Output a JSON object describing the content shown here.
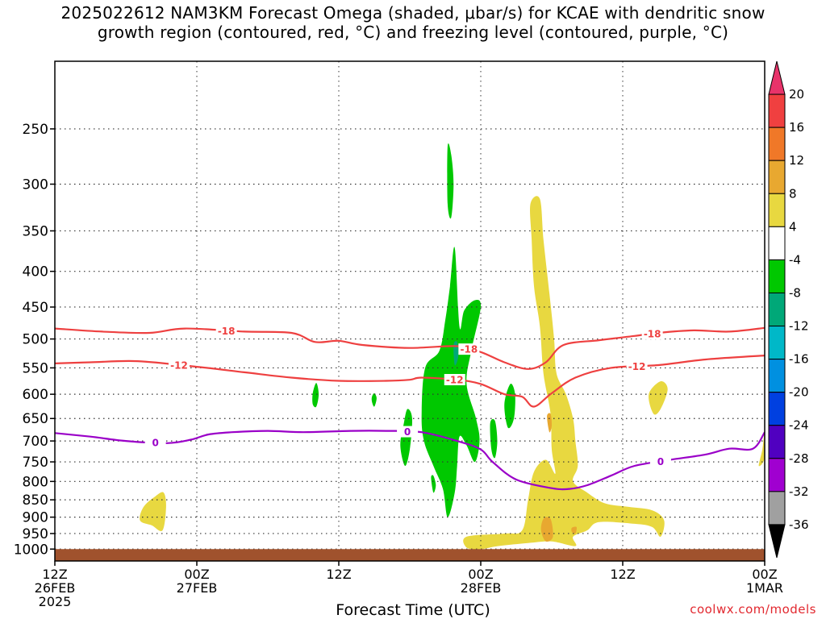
{
  "title": {
    "line1": "2025022612 NAM3KM Forecast Omega (shaded, μbar/s) for KCAE with dendritic snow",
    "line2": "growth region (contoured, red, °C) and freezing level (contoured, purple, °C)"
  },
  "credit": "coolwx.com/models",
  "chart_data": {
    "type": "heatmap",
    "title": "2025022612 NAM3KM Forecast Omega (shaded, μbar/s) for KCAE with dendritic snow growth region (contoured, red, °C) and freezing level (contoured, purple, °C)",
    "xlabel": "Forecast Time (UTC)",
    "ylabel": "",
    "x_ticks": [
      {
        "hour": 0,
        "lines": [
          "12Z",
          "26FEB",
          "2025"
        ]
      },
      {
        "hour": 12,
        "lines": [
          "00Z",
          "27FEB"
        ]
      },
      {
        "hour": 24,
        "lines": [
          "12Z"
        ]
      },
      {
        "hour": 36,
        "lines": [
          "00Z",
          "28FEB"
        ]
      },
      {
        "hour": 48,
        "lines": [
          "12Z"
        ]
      },
      {
        "hour": 60,
        "lines": [
          "00Z",
          "1MAR"
        ]
      }
    ],
    "xlim_hours": [
      0,
      60
    ],
    "y_scale": "log",
    "y_ticks_hpa": [
      250,
      300,
      350,
      400,
      450,
      500,
      550,
      600,
      650,
      700,
      750,
      800,
      850,
      900,
      950,
      1000
    ],
    "ylim_hpa": [
      200,
      1040
    ],
    "grid": "dotted",
    "colorbar": {
      "label_values": [
        "20",
        "16",
        "12",
        "8",
        "4",
        "-4",
        "-8",
        "-12",
        "-16",
        "-20",
        "-24",
        "-28",
        "-32",
        "-36"
      ],
      "bins": [
        {
          "color": "#e8336a"
        },
        {
          "color": "#f04040"
        },
        {
          "color": "#f07828"
        },
        {
          "color": "#e8a830"
        },
        {
          "color": "#e8d840"
        },
        {
          "color": "#ffffff"
        },
        {
          "color": "#00c800"
        },
        {
          "color": "#00a878"
        },
        {
          "color": "#00b8c8"
        },
        {
          "color": "#0090e0"
        },
        {
          "color": "#0040e0"
        },
        {
          "color": "#5000c0"
        },
        {
          "color": "#a000d0"
        },
        {
          "color": "#a0a0a0"
        },
        {
          "color": "#000000"
        }
      ]
    },
    "omega_regions": [
      {
        "name": "green",
        "color": "#00c800",
        "blobs": [
          [
            [
              21.8,
              598
            ],
            [
              22.1,
              578
            ],
            [
              22.3,
              600
            ],
            [
              22.1,
              625
            ],
            [
              21.8,
              620
            ]
          ],
          [
            [
              26.8,
              605
            ],
            [
              27.0,
              598
            ],
            [
              27.2,
              608
            ],
            [
              27.0,
              625
            ],
            [
              26.8,
              615
            ]
          ],
          [
            [
              29.5,
              660
            ],
            [
              29.8,
              630
            ],
            [
              30.2,
              650
            ],
            [
              30.0,
              720
            ],
            [
              29.6,
              760
            ],
            [
              29.2,
              710
            ]
          ],
          [
            [
              31.3,
              550
            ],
            [
              32.5,
              520
            ],
            [
              33.0,
              470
            ],
            [
              33.4,
              420
            ],
            [
              33.8,
              370
            ],
            [
              34.2,
              480
            ],
            [
              34.6,
              455
            ],
            [
              35.5,
              440
            ],
            [
              36.0,
              450
            ],
            [
              35.2,
              520
            ],
            [
              34.8,
              580
            ],
            [
              35.6,
              650
            ],
            [
              35.9,
              700
            ],
            [
              35.5,
              750
            ],
            [
              34.8,
              710
            ],
            [
              34.2,
              690
            ],
            [
              34.0,
              760
            ],
            [
              33.8,
              830
            ],
            [
              33.2,
              900
            ],
            [
              32.8,
              820
            ],
            [
              32.0,
              760
            ],
            [
              31.2,
              700
            ],
            [
              31.0,
              640
            ]
          ],
          [
            [
              33.2,
              265
            ],
            [
              33.5,
              272
            ],
            [
              33.7,
              300
            ],
            [
              33.5,
              335
            ],
            [
              33.2,
              320
            ]
          ],
          [
            [
              38.0,
              620
            ],
            [
              38.5,
              580
            ],
            [
              38.9,
              600
            ],
            [
              38.8,
              650
            ],
            [
              38.3,
              670
            ]
          ],
          [
            [
              36.8,
              660
            ],
            [
              37.2,
              655
            ],
            [
              37.4,
              700
            ],
            [
              37.2,
              740
            ],
            [
              36.9,
              720
            ]
          ],
          [
            [
              31.8,
              790
            ],
            [
              32.0,
              785
            ],
            [
              32.2,
              810
            ],
            [
              32.0,
              830
            ]
          ]
        ]
      },
      {
        "name": "teal",
        "color": "#00a878",
        "blobs": [
          [
            [
              33.7,
              510
            ],
            [
              34.0,
              505
            ],
            [
              34.1,
              530
            ],
            [
              33.8,
              545
            ]
          ]
        ]
      },
      {
        "name": "yellow",
        "color": "#e8d840",
        "blobs": [
          [
            [
              7.2,
              910
            ],
            [
              7.5,
              870
            ],
            [
              8.5,
              840
            ],
            [
              9.2,
              830
            ],
            [
              9.4,
              870
            ],
            [
              9.1,
              940
            ],
            [
              8.2,
              925
            ]
          ],
          [
            [
              40.2,
              320
            ],
            [
              41.0,
              315
            ],
            [
              41.3,
              360
            ],
            [
              41.8,
              430
            ],
            [
              42.2,
              500
            ],
            [
              42.4,
              560
            ],
            [
              43.2,
              600
            ],
            [
              43.8,
              650
            ],
            [
              44.0,
              700
            ],
            [
              44.2,
              760
            ],
            [
              43.8,
              800
            ],
            [
              45.0,
              830
            ],
            [
              46.5,
              860
            ],
            [
              48.5,
              870
            ],
            [
              50.5,
              880
            ],
            [
              51.5,
              910
            ],
            [
              51.2,
              960
            ],
            [
              50.5,
              930
            ],
            [
              49.0,
              920
            ],
            [
              46.0,
              915
            ],
            [
              45.0,
              940
            ],
            [
              43.8,
              960
            ],
            [
              44.0,
              990
            ],
            [
              42.0,
              975
            ],
            [
              40.0,
              980
            ],
            [
              37.5,
              990
            ],
            [
              36.0,
              1000
            ],
            [
              34.8,
              995
            ],
            [
              34.8,
              960
            ],
            [
              38.0,
              950
            ],
            [
              39.5,
              940
            ],
            [
              40.0,
              850
            ],
            [
              40.5,
              775
            ],
            [
              41.5,
              745
            ],
            [
              42.3,
              780
            ],
            [
              42.0,
              720
            ],
            [
              41.9,
              640
            ],
            [
              41.3,
              560
            ],
            [
              41.0,
              480
            ],
            [
              40.5,
              420
            ],
            [
              40.3,
              360
            ]
          ],
          [
            [
              50.2,
              600
            ],
            [
              51.2,
              575
            ],
            [
              51.8,
              590
            ],
            [
              51.2,
              630
            ],
            [
              50.6,
              640
            ]
          ],
          [
            [
              59.5,
              760
            ],
            [
              60.0,
              740
            ],
            [
              60.0,
              680
            ],
            [
              59.8,
              720
            ]
          ]
        ]
      },
      {
        "name": "yellow-dark",
        "color": "#e8a830",
        "blobs": [
          [
            [
              41.6,
              645
            ],
            [
              41.9,
              640
            ],
            [
              42.0,
              665
            ],
            [
              41.8,
              680
            ]
          ],
          [
            [
              41.3,
              905
            ],
            [
              41.9,
              905
            ],
            [
              42.1,
              960
            ],
            [
              41.5,
              975
            ],
            [
              41.1,
              940
            ]
          ],
          [
            [
              43.7,
              932
            ],
            [
              44.1,
              930
            ],
            [
              44.0,
              950
            ],
            [
              43.7,
              945
            ]
          ]
        ]
      }
    ],
    "isotherms": [
      {
        "name": "-18",
        "color": "#ee4040",
        "labels": [
          {
            "text": "-18",
            "hour": 14.5
          },
          {
            "text": "-18",
            "hour": 35.0
          },
          {
            "text": "-18",
            "hour": 50.5
          }
        ],
        "points": [
          [
            0,
            483
          ],
          [
            4,
            488
          ],
          [
            8,
            490
          ],
          [
            11,
            483
          ],
          [
            16,
            488
          ],
          [
            20,
            490
          ],
          [
            22,
            505
          ],
          [
            24,
            503
          ],
          [
            26,
            510
          ],
          [
            30,
            515
          ],
          [
            34,
            512
          ],
          [
            36,
            522
          ],
          [
            38,
            540
          ],
          [
            40,
            552
          ],
          [
            41.5,
            540
          ],
          [
            43,
            510
          ],
          [
            46,
            502
          ],
          [
            49,
            495
          ],
          [
            51,
            490
          ],
          [
            54,
            486
          ],
          [
            57,
            488
          ],
          [
            60,
            482
          ]
        ]
      },
      {
        "name": "-12",
        "color": "#ee4040",
        "labels": [
          {
            "text": "-12",
            "hour": 10.5
          },
          {
            "text": "-12",
            "hour": 33.8
          },
          {
            "text": "-12",
            "hour": 49.2
          }
        ],
        "points": [
          [
            0,
            542
          ],
          [
            3,
            540
          ],
          [
            7,
            538
          ],
          [
            12,
            548
          ],
          [
            16,
            558
          ],
          [
            20,
            568
          ],
          [
            24,
            574
          ],
          [
            28,
            574
          ],
          [
            30,
            572
          ],
          [
            31,
            568
          ],
          [
            34,
            572
          ],
          [
            36,
            580
          ],
          [
            38,
            600
          ],
          [
            39.5,
            605
          ],
          [
            40.5,
            625
          ],
          [
            42,
            598
          ],
          [
            44,
            568
          ],
          [
            47,
            550
          ],
          [
            51,
            545
          ],
          [
            55,
            535
          ],
          [
            60,
            528
          ]
        ]
      },
      {
        "name": "0",
        "color": "#9a00c8",
        "labels": [
          {
            "text": "0",
            "hour": 8.5
          },
          {
            "text": "0",
            "hour": 29.8
          },
          {
            "text": "0",
            "hour": 51.2
          }
        ],
        "points": [
          [
            0,
            682
          ],
          [
            3,
            690
          ],
          [
            6,
            700
          ],
          [
            9.5,
            705
          ],
          [
            11.5,
            697
          ],
          [
            13,
            685
          ],
          [
            15,
            680
          ],
          [
            18,
            677
          ],
          [
            21,
            680
          ],
          [
            25,
            677
          ],
          [
            28,
            677
          ],
          [
            31,
            680
          ],
          [
            34,
            700
          ],
          [
            36,
            720
          ],
          [
            37,
            750
          ],
          [
            39,
            795
          ],
          [
            42,
            818
          ],
          [
            43.5,
            820
          ],
          [
            45,
            810
          ],
          [
            47,
            785
          ],
          [
            49,
            760
          ],
          [
            52,
            745
          ],
          [
            55,
            732
          ],
          [
            57,
            718
          ],
          [
            59,
            718
          ],
          [
            60,
            680
          ]
        ]
      }
    ],
    "terrain": {
      "color": "#a0522d",
      "top_hpa": 1000
    }
  }
}
